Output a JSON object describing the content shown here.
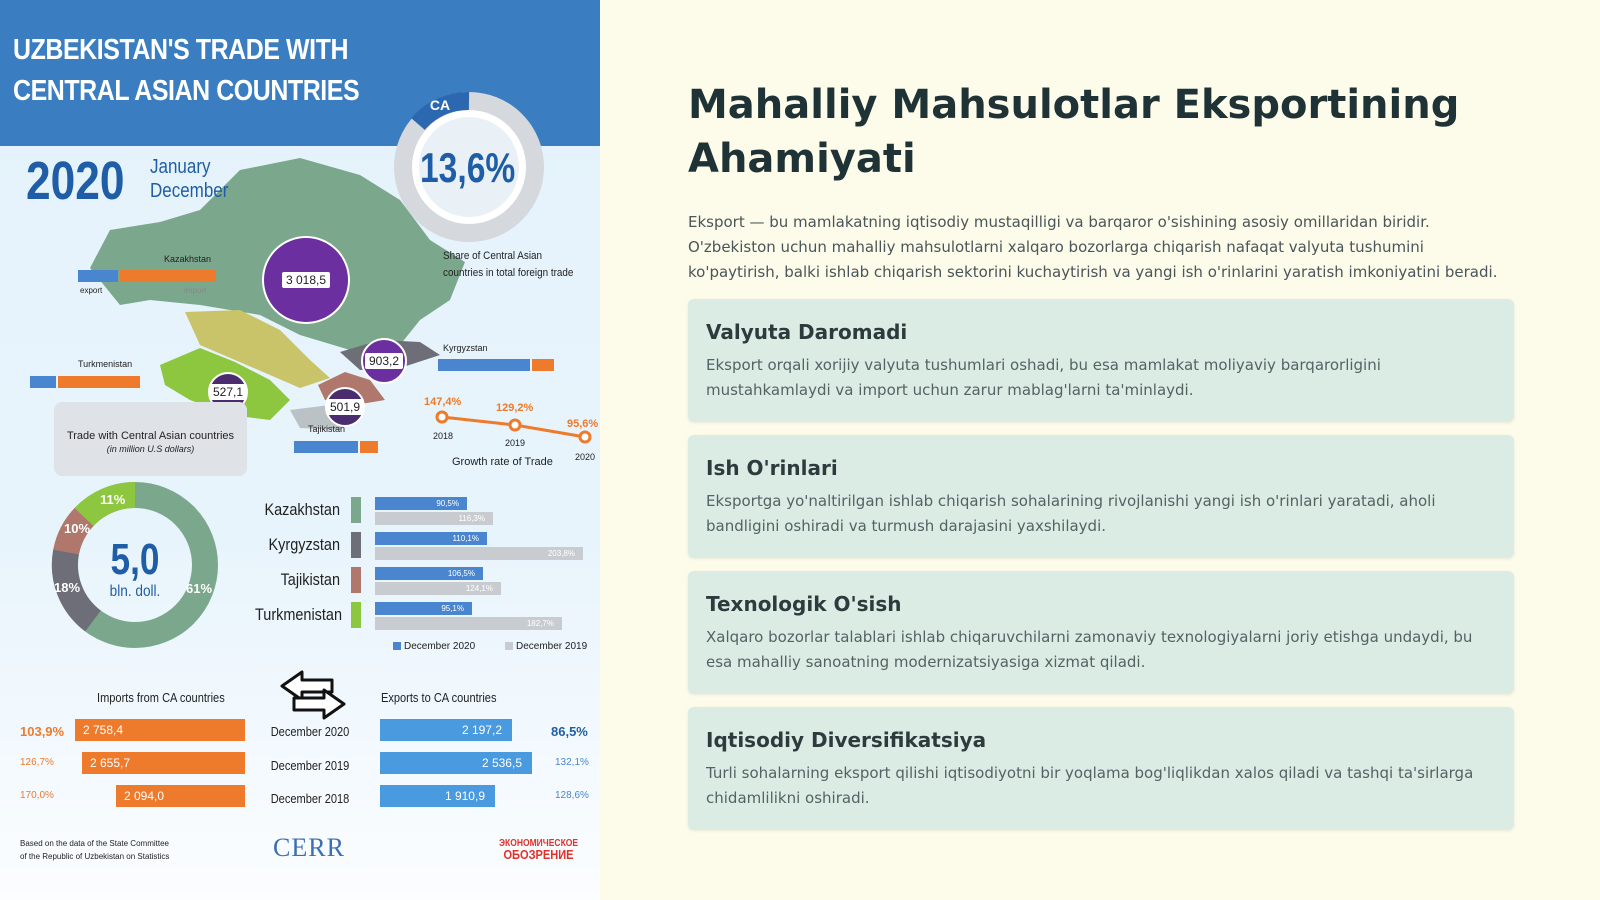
{
  "infographic": {
    "title": "UZBEKISTAN'S TRADE WITH CENTRAL ASIAN COUNTRIES",
    "year": "2020",
    "period_line1": "January",
    "period_line2": "December",
    "ca_label": "CA",
    "ca_share": "13,6%",
    "ca_caption_line1": "Share of Central Asian",
    "ca_caption_line2": "countries in total foreign trade",
    "countries": {
      "kazakhstan": {
        "name": "Kazakhstan",
        "total": "3 018,5"
      },
      "kyrgyzstan": {
        "name": "Kyrgyzstan",
        "total": "903,2"
      },
      "turkmenistan": {
        "name": "Turkmenistan",
        "total": "527,1"
      },
      "tajikistan": {
        "name": "Tajikistan",
        "total": "501,9"
      }
    },
    "export_label": "export",
    "import_label": "import",
    "growth": {
      "title": "Growth rate of Trade",
      "points": [
        {
          "year": "2018",
          "value": "147,4%"
        },
        {
          "year": "2019",
          "value": "129,2%"
        },
        {
          "year": "2020",
          "value": "95,6%"
        }
      ]
    },
    "trade_box_title": "Trade with Central Asian countries",
    "trade_box_sub": "(in million U.S dollars)",
    "total_value": "5,0",
    "total_unit": "bln. doll.",
    "shares": {
      "kazakhstan": "61%",
      "kyrgyzstan": "18%",
      "tajikistan": "10%",
      "turkmenistan": "11%"
    },
    "growth_bars": [
      {
        "country": "Kazakhstan",
        "dec2020": "90,5%",
        "dec2019": "116,3%"
      },
      {
        "country": "Kyrgyzstan",
        "dec2020": "110,1%",
        "dec2019": "203,8%"
      },
      {
        "country": "Tajikistan",
        "dec2020": "106,5%",
        "dec2019": "124,1%"
      },
      {
        "country": "Turkmenistan",
        "dec2020": "95,1%",
        "dec2019": "182,7%"
      }
    ],
    "legend_2020": "December 2020",
    "legend_2019": "December 2019",
    "imports_title": "Imports from CA countries",
    "exports_title": "Exports to CA countries",
    "flows": [
      {
        "label": "December 2020",
        "imp_pct": "103,9%",
        "imp_val": "2 758,4",
        "exp_val": "2 197,2",
        "exp_pct": "86,5%"
      },
      {
        "label": "December 2019",
        "imp_pct": "126,7%",
        "imp_val": "2 655,7",
        "exp_val": "2 536,5",
        "exp_pct": "132,1%"
      },
      {
        "label": "December 2018",
        "imp_pct": "170,0%",
        "imp_val": "2 094,0",
        "exp_val": "1 910,9",
        "exp_pct": "128,6%"
      }
    ],
    "source_line1": "Based on the data of the State Committee",
    "source_line2": "of the Republic of Uzbekistan on Statistics",
    "logo_cerr": "CERR",
    "logo_eo_line1": "ЭКОНОМИЧЕСКОЕ",
    "logo_eo_line2": "ОБОЗРЕНИЕ"
  },
  "content": {
    "title": "Mahalliy Mahsulotlar Eksportining Ahamiyati",
    "intro": "Eksport — bu mamlakatning iqtisodiy mustaqilligi va barqaror o'sishining asosiy omillaridan biridir. O'zbekiston uchun mahalliy mahsulotlarni xalqaro bozorlarga chiqarish nafaqat valyuta tushumini ko'paytirish, balki ishlab chiqarish sektorini kuchaytirish va yangi ish o'rinlarini yaratish imkoniyatini beradi.",
    "cards": [
      {
        "title": "Valyuta Daromadi",
        "body": "Eksport orqali xorijiy valyuta tushumlari oshadi, bu esa mamlakat moliyaviy barqarorligini mustahkamlaydi va import uchun zarur mablag'larni ta'minlaydi."
      },
      {
        "title": "Ish O'rinlari",
        "body": "Eksportga yo'naltirilgan ishlab chiqarish sohalarining rivojlanishi yangi ish o'rinlari yaratadi, aholi bandligini oshiradi va turmush darajasini yaxshilaydi."
      },
      {
        "title": "Texnologik O'sish",
        "body": "Xalqaro bozorlar talablari ishlab chiqaruvchilarni zamonaviy texnologiyalarni joriy etishga undaydi, bu esa mahalliy sanoatning modernizatsiyasiga xizmat qiladi."
      },
      {
        "title": "Iqtisodiy Diversifikatsiya",
        "body": "Turli sohalarning eksport qilishi iqtisodiyotni bir yoqlama bog'liqlikdan xalos qiladi va tashqi ta'sirlarga chidamlilikni oshiradi."
      }
    ]
  }
}
